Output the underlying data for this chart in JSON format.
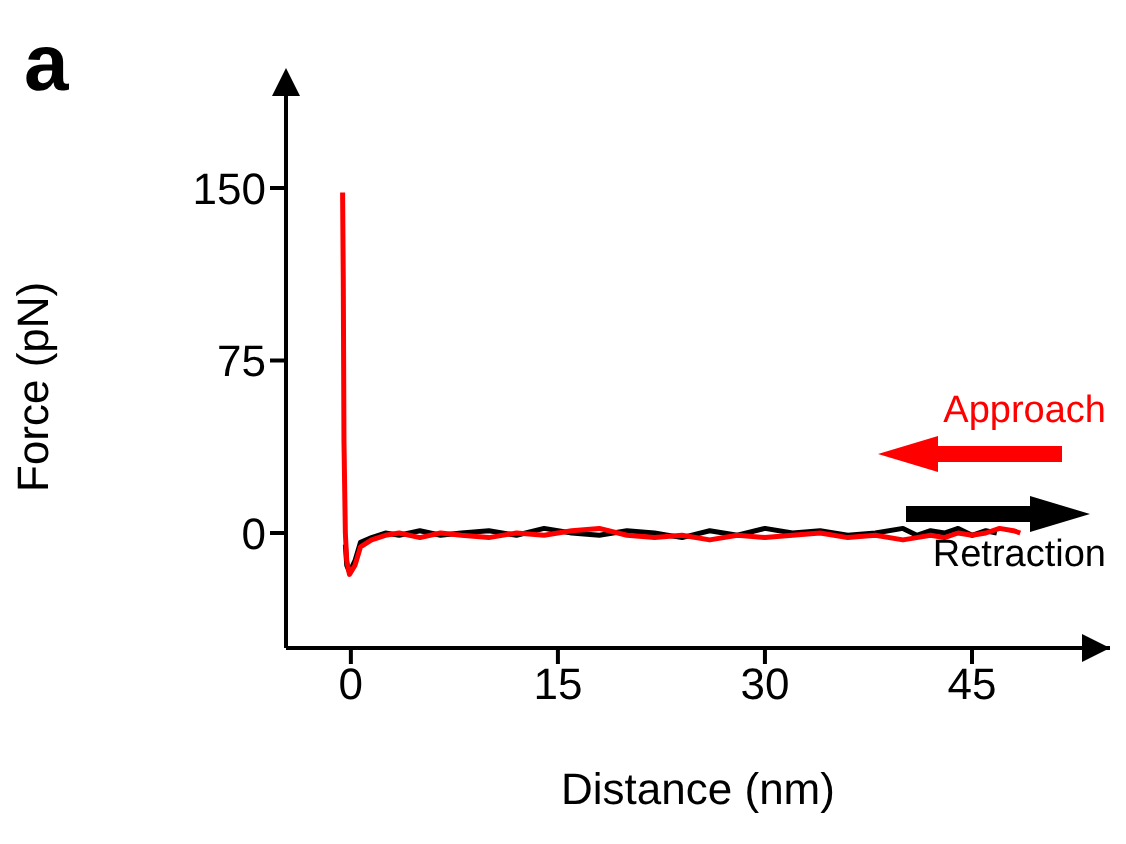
{
  "chart_data": {
    "type": "line",
    "xlabel": "Distance (nm)",
    "ylabel": "Force  (pN)",
    "annotations": [
      "a"
    ],
    "xlim": [
      -4.7,
      55
    ],
    "xticks": [
      0,
      15,
      30,
      45
    ],
    "ylim": [
      -50,
      190
    ],
    "yticks": [
      0,
      75,
      150
    ],
    "legend": "bottom right",
    "marker": "none",
    "line_style": "solid",
    "series": [
      {
        "name": "Retraction",
        "color": "#000000",
        "x": [
          -0.4,
          -0.3,
          -0.1,
          0.3,
          0.7,
          1.5,
          2.5,
          3.5,
          5,
          6.5,
          8,
          10,
          12,
          14,
          16,
          18,
          20,
          22,
          24,
          26,
          28,
          30,
          32,
          34,
          36,
          38,
          40,
          41,
          42,
          43,
          44,
          45,
          46,
          46.8
        ],
        "values": [
          -5,
          -14,
          -17,
          -12,
          -4,
          -2,
          0,
          -1,
          1,
          -1,
          0,
          1,
          -1,
          2,
          0,
          -1,
          1,
          0,
          -2,
          1,
          -1,
          2,
          0,
          1,
          -1,
          0,
          2,
          -1,
          1,
          0,
          2,
          -1,
          1,
          0
        ]
      },
      {
        "name": "Approach",
        "color": "#ff0000",
        "x": [
          -0.6,
          -0.55,
          -0.5,
          -0.4,
          -0.3,
          -0.1,
          0.3,
          0.7,
          1.5,
          2.5,
          3.5,
          5,
          6.5,
          8,
          10,
          12,
          14,
          16,
          18,
          20,
          22,
          24,
          26,
          28,
          30,
          32,
          34,
          36,
          38,
          40,
          41,
          42,
          43,
          44,
          45,
          46,
          47,
          48,
          48.5
        ],
        "values": [
          148,
          110,
          40,
          0,
          -12,
          -18,
          -14,
          -6,
          -3,
          -1,
          0,
          -2,
          0,
          -1,
          -2,
          0,
          -1,
          1,
          2,
          -1,
          -2,
          -1,
          -3,
          -1,
          -2,
          -1,
          0,
          -2,
          -1,
          -3,
          -2,
          -1,
          -2,
          0,
          -1,
          0,
          2,
          1,
          0
        ]
      }
    ]
  }
}
